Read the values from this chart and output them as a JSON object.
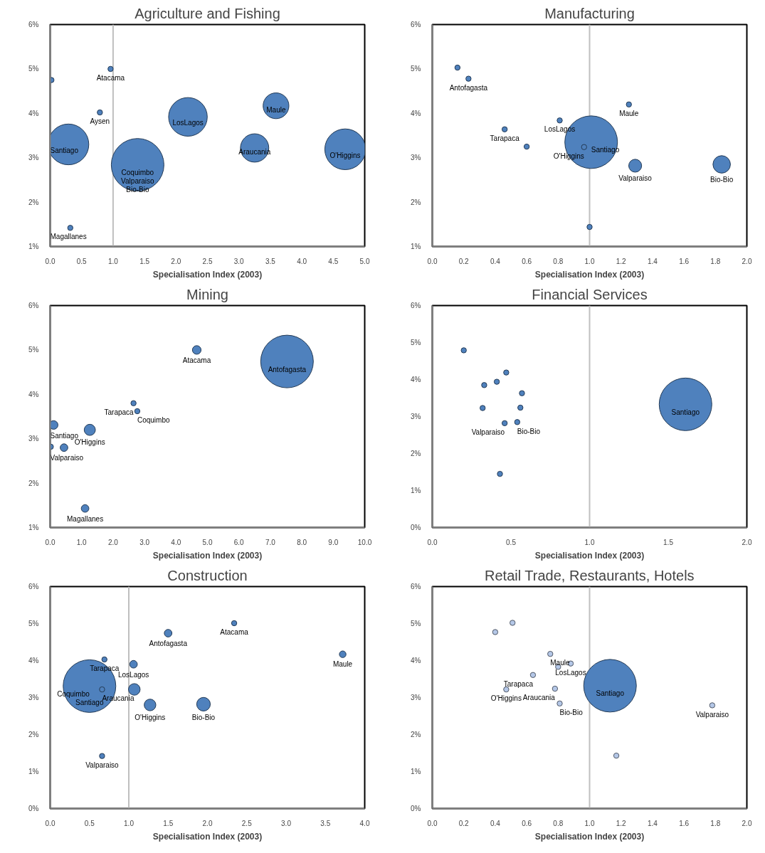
{
  "chart_data": [
    {
      "type": "bubble",
      "title": "Agriculture and Fishing",
      "xlabel": "Specialisation Index (2003)",
      "color": "#4f81bd",
      "x": [
        0.02,
        0.96,
        0.79,
        0.29,
        1.39,
        2.19,
        3.59,
        3.25,
        4.69,
        0.32
      ],
      "values": [
        4.75,
        5.0,
        4.02,
        3.3,
        2.84,
        3.92,
        4.17,
        3.22,
        3.19,
        1.42
      ],
      "sizes": [
        0.01,
        0.01,
        0.01,
        0.6,
        1,
        0.54,
        0.24,
        0.29,
        0.6,
        0.01
      ],
      "xlim": [
        0,
        5
      ],
      "xticks": [
        {
          "value": 0,
          "label": "0.0"
        },
        {
          "value": 0.5,
          "label": "0.5"
        },
        {
          "value": 1,
          "label": "1.0"
        },
        {
          "value": 1.5,
          "label": "1.5"
        },
        {
          "value": 2,
          "label": "2.0"
        },
        {
          "value": 2.5,
          "label": "2.5"
        },
        {
          "value": 3,
          "label": "3.0"
        },
        {
          "value": 3.5,
          "label": "3.5"
        },
        {
          "value": 4,
          "label": "4.0"
        },
        {
          "value": 4.5,
          "label": "4.5"
        },
        {
          "value": 5,
          "label": "5.0"
        }
      ],
      "ylim": [
        1,
        6
      ],
      "yticks": [
        {
          "value": 1,
          "label": "1%"
        },
        {
          "value": 2,
          "label": "2%"
        },
        {
          "value": 3,
          "label": "3%"
        },
        {
          "value": 4,
          "label": "4%"
        },
        {
          "value": 5,
          "label": "5%"
        },
        {
          "value": 6,
          "label": "6%"
        }
      ],
      "ref_lines": [
        {
          "axis": "x",
          "value": 1,
          "color": "#bfbfbf"
        }
      ],
      "annotations": [
        {
          "text": "Atacama",
          "x": 0.96,
          "y": 5.0
        },
        {
          "text": "Aysen",
          "x": 0.79,
          "y": 4.02
        },
        {
          "text": "Coquimbo",
          "x": 1.39,
          "y": 2.84
        },
        {
          "text": "Santiago",
          "x": 0.29,
          "y": 3.3
        },
        {
          "text": "LosLagos",
          "x": 2.19,
          "y": 3.92
        },
        {
          "text": "Maule",
          "x": 3.59,
          "y": 4.17
        },
        {
          "text": "Valparaiso",
          "x": 1.39,
          "y": 2.84
        },
        {
          "text": "Araucania",
          "x": 3.25,
          "y": 3.22
        },
        {
          "text": "O'Higgins",
          "x": 4.69,
          "y": 3.19
        },
        {
          "text": "Bio-Bio",
          "x": 1.39,
          "y": 2.84
        },
        {
          "text": "Magallanes",
          "x": 0.32,
          "y": 1.42
        }
      ]
    },
    {
      "type": "bubble",
      "title": "Manufacturing",
      "xlabel": "Specialisation Index (2003)",
      "color": "#4f81bd",
      "x": [
        0.16,
        0.23,
        0.46,
        0.6,
        0.81,
        1.01,
        0.965,
        1.25,
        1.29,
        1.84,
        1.0
      ],
      "values": [
        5.03,
        4.78,
        3.64,
        3.25,
        3.84,
        3.35,
        3.24,
        4.2,
        2.82,
        2.85,
        1.44
      ],
      "sizes": [
        0.01,
        0.01,
        0.01,
        0.01,
        0.01,
        1,
        0.01,
        0.01,
        0.06,
        0.11,
        0.01
      ],
      "xlim": [
        0,
        2
      ],
      "xticks": [
        {
          "value": 0,
          "label": "0.0"
        },
        {
          "value": 0.2,
          "label": "0.2"
        },
        {
          "value": 0.4,
          "label": "0.4"
        },
        {
          "value": 0.6,
          "label": "0.6"
        },
        {
          "value": 0.8,
          "label": "0.8"
        },
        {
          "value": 1,
          "label": "1.0"
        },
        {
          "value": 1.2,
          "label": "1.2"
        },
        {
          "value": 1.4,
          "label": "1.4"
        },
        {
          "value": 1.6,
          "label": "1.6"
        },
        {
          "value": 1.8,
          "label": "1.8"
        },
        {
          "value": 2,
          "label": "2.0"
        }
      ],
      "ylim": [
        1,
        6
      ],
      "yticks": [
        {
          "value": 1,
          "label": "1%"
        },
        {
          "value": 2,
          "label": "2%"
        },
        {
          "value": 3,
          "label": "3%"
        },
        {
          "value": 4,
          "label": "4%"
        },
        {
          "value": 5,
          "label": "5%"
        },
        {
          "value": 6,
          "label": "6%"
        }
      ],
      "ref_lines": [
        {
          "axis": "x",
          "value": 1,
          "color": "#bfbfbf"
        }
      ],
      "annotations": [
        {
          "text": "Antofagasta",
          "x": 0.23,
          "y": 4.78
        },
        {
          "text": "LosLagos",
          "x": 0.81,
          "y": 3.84
        },
        {
          "text": "Tarapaca",
          "x": 0.46,
          "y": 3.64
        },
        {
          "text": "Maule",
          "x": 1.25,
          "y": 4.2
        },
        {
          "text": "O'Higgins",
          "x": 0.965,
          "y": 3.24
        },
        {
          "text": "Santiago",
          "x": 1.01,
          "y": 3.35
        },
        {
          "text": "Valparaiso",
          "x": 1.29,
          "y": 2.82
        },
        {
          "text": "Bio-Bio",
          "x": 1.84,
          "y": 2.85
        }
      ]
    },
    {
      "type": "bubble",
      "title": "Mining",
      "xlabel": "Specialisation Index (2003)",
      "color": "#4f81bd",
      "x": [
        7.53,
        4.66,
        2.65,
        2.77,
        0.11,
        1.26,
        0.44,
        0.02,
        1.11
      ],
      "values": [
        4.74,
        5.0,
        3.8,
        3.62,
        3.31,
        3.2,
        2.8,
        2.82,
        1.43
      ],
      "sizes": [
        1,
        0.027,
        0.01,
        0.01,
        0.027,
        0.045,
        0.021,
        0.01,
        0.021
      ],
      "xlim": [
        0,
        10
      ],
      "xticks": [
        {
          "value": 0,
          "label": "0.0"
        },
        {
          "value": 1,
          "label": "1.0"
        },
        {
          "value": 2,
          "label": "2.0"
        },
        {
          "value": 3,
          "label": "3.0"
        },
        {
          "value": 4,
          "label": "4.0"
        },
        {
          "value": 5,
          "label": "5.0"
        },
        {
          "value": 6,
          "label": "6.0"
        },
        {
          "value": 7,
          "label": "7.0"
        },
        {
          "value": 8,
          "label": "8.0"
        },
        {
          "value": 9,
          "label": "9.0"
        },
        {
          "value": 10,
          "label": "10.0"
        }
      ],
      "ylim": [
        1,
        6
      ],
      "yticks": [
        {
          "value": 1,
          "label": "1%"
        },
        {
          "value": 2,
          "label": "2%"
        },
        {
          "value": 3,
          "label": "3%"
        },
        {
          "value": 4,
          "label": "4%"
        },
        {
          "value": 5,
          "label": "5%"
        },
        {
          "value": 6,
          "label": "6%"
        }
      ],
      "annotations": [
        {
          "text": "Atacama",
          "x": 4.66,
          "y": 5.0
        },
        {
          "text": "Antofagasta",
          "x": 7.53,
          "y": 4.74
        },
        {
          "text": "Tarapaca",
          "x": 2.65,
          "y": 3.8
        },
        {
          "text": "Coquimbo",
          "x": 2.77,
          "y": 3.62
        },
        {
          "text": "Santiago",
          "x": 0.11,
          "y": 3.31
        },
        {
          "text": "O'Higgins",
          "x": 1.26,
          "y": 3.2
        },
        {
          "text": "Valparaiso",
          "x": 0.44,
          "y": 2.8
        },
        {
          "text": "Magallanes",
          "x": 1.11,
          "y": 1.43
        }
      ]
    },
    {
      "type": "bubble",
      "title": "Financial Services",
      "xlabel": "Specialisation Index (2003)",
      "color": "#4f81bd",
      "x": [
        0.2,
        0.47,
        0.41,
        0.33,
        0.57,
        0.32,
        0.56,
        0.46,
        0.54,
        0.43,
        1.61
      ],
      "values": [
        4.79,
        4.19,
        3.94,
        3.85,
        3.63,
        3.23,
        3.24,
        2.82,
        2.85,
        1.45,
        3.33
      ],
      "sizes": [
        0.01,
        0.01,
        0.01,
        0.01,
        0.01,
        0.01,
        0.01,
        0.01,
        0.01,
        0.01,
        1
      ],
      "xlim": [
        0,
        2
      ],
      "xticks": [
        {
          "value": 0,
          "label": "0.0"
        },
        {
          "value": 0.5,
          "label": "0.5"
        },
        {
          "value": 1,
          "label": "1.0"
        },
        {
          "value": 1.5,
          "label": "1.5"
        },
        {
          "value": 2,
          "label": "2.0"
        }
      ],
      "ylim": [
        0,
        6
      ],
      "yticks": [
        {
          "value": 0,
          "label": "0%"
        },
        {
          "value": 1,
          "label": "1%"
        },
        {
          "value": 2,
          "label": "2%"
        },
        {
          "value": 3,
          "label": "3%"
        },
        {
          "value": 4,
          "label": "4%"
        },
        {
          "value": 5,
          "label": "5%"
        },
        {
          "value": 6,
          "label": "6%"
        }
      ],
      "ref_lines": [
        {
          "axis": "x",
          "value": 1,
          "color": "#bfbfbf"
        }
      ],
      "annotations": [
        {
          "text": "Valparaiso",
          "x": 0.46,
          "y": 2.82
        },
        {
          "text": "Bio-Bio",
          "x": 0.54,
          "y": 2.85
        },
        {
          "text": "Santiago",
          "x": 1.61,
          "y": 3.33
        }
      ]
    },
    {
      "type": "bubble",
      "title": "Construction",
      "xlabel": "Specialisation Index (2003)",
      "color": "#4f81bd",
      "x": [
        0.5,
        0.69,
        0.66,
        0.66,
        1.5,
        2.34,
        1.06,
        1.07,
        1.27,
        1.95,
        3.72
      ],
      "values": [
        3.31,
        4.03,
        3.22,
        1.42,
        4.74,
        5.01,
        3.9,
        3.22,
        2.8,
        2.82,
        4.17
      ],
      "sizes": [
        1,
        0.01,
        0.01,
        0.01,
        0.021,
        0.01,
        0.021,
        0.049,
        0.049,
        0.067,
        0.016
      ],
      "xlim": [
        0,
        4
      ],
      "xticks": [
        {
          "value": 0,
          "label": "0.0"
        },
        {
          "value": 0.5,
          "label": "0.5"
        },
        {
          "value": 1,
          "label": "1.0"
        },
        {
          "value": 1.5,
          "label": "1.5"
        },
        {
          "value": 2,
          "label": "2.0"
        },
        {
          "value": 2.5,
          "label": "2.5"
        },
        {
          "value": 3,
          "label": "3.0"
        },
        {
          "value": 3.5,
          "label": "3.5"
        },
        {
          "value": 4,
          "label": "4.0"
        }
      ],
      "ylim": [
        0,
        6
      ],
      "yticks": [
        {
          "value": 0,
          "label": "0%"
        },
        {
          "value": 1,
          "label": "1%"
        },
        {
          "value": 2,
          "label": "2%"
        },
        {
          "value": 3,
          "label": "3%"
        },
        {
          "value": 4,
          "label": "4%"
        },
        {
          "value": 5,
          "label": "5%"
        },
        {
          "value": 6,
          "label": "6%"
        }
      ],
      "ref_lines": [
        {
          "axis": "x",
          "value": 1,
          "color": "#bfbfbf"
        }
      ],
      "annotations": [
        {
          "text": "Antofagasta",
          "x": 1.5,
          "y": 4.74
        },
        {
          "text": "Atacama",
          "x": 2.34,
          "y": 5.01
        },
        {
          "text": "LosLagos",
          "x": 1.06,
          "y": 3.9
        },
        {
          "text": "Maule",
          "x": 3.72,
          "y": 4.17
        },
        {
          "text": "Tarapaca",
          "x": 0.69,
          "y": 4.03
        },
        {
          "text": "Coquimbo",
          "x": 0.5,
          "y": 3.31
        },
        {
          "text": "Araucania",
          "x": 0.66,
          "y": 3.22
        },
        {
          "text": "Santiago",
          "x": 0.5,
          "y": 3.31
        },
        {
          "text": "O'Higgins",
          "x": 1.27,
          "y": 2.8
        },
        {
          "text": "Bio-Bio",
          "x": 1.95,
          "y": 2.82
        },
        {
          "text": "Valparaiso",
          "x": 0.66,
          "y": 1.42
        }
      ]
    },
    {
      "type": "bubble",
      "title": "Retail Trade, Restaurants, Hotels",
      "xlabel": "Specialisation Index (2003)",
      "colors": [
        "#b4c7e7",
        "#b4c7e7",
        "#b4c7e7",
        "#b4c7e7",
        "#b4c7e7",
        "#b4c7e7",
        "#b4c7e7",
        "#b4c7e7",
        "#b4c7e7",
        "#4f81bd",
        "#b4c7e7",
        "#b4c7e7"
      ],
      "x": [
        0.51,
        0.4,
        0.75,
        0.88,
        0.8,
        0.64,
        0.47,
        0.78,
        0.81,
        1.13,
        1.78,
        1.17
      ],
      "values": [
        5.02,
        4.77,
        4.18,
        3.92,
        3.83,
        3.61,
        3.22,
        3.24,
        2.84,
        3.32,
        2.79,
        1.43
      ],
      "sizes": [
        0.01,
        0.01,
        0.01,
        0.01,
        0.01,
        0.01,
        0.01,
        0.01,
        0.01,
        1,
        0.01,
        0.01
      ],
      "xlim": [
        0,
        2
      ],
      "xticks": [
        {
          "value": 0,
          "label": "0.0"
        },
        {
          "value": 0.2,
          "label": "0.2"
        },
        {
          "value": 0.4,
          "label": "0.4"
        },
        {
          "value": 0.6,
          "label": "0.6"
        },
        {
          "value": 0.8,
          "label": "0.8"
        },
        {
          "value": 1,
          "label": "1.0"
        },
        {
          "value": 1.2,
          "label": "1.2"
        },
        {
          "value": 1.4,
          "label": "1.4"
        },
        {
          "value": 1.6,
          "label": "1.6"
        },
        {
          "value": 1.8,
          "label": "1.8"
        },
        {
          "value": 2,
          "label": "2.0"
        }
      ],
      "ylim": [
        0,
        6
      ],
      "yticks": [
        {
          "value": 0,
          "label": "0%"
        },
        {
          "value": 1,
          "label": "1%"
        },
        {
          "value": 2,
          "label": "2%"
        },
        {
          "value": 3,
          "label": "3%"
        },
        {
          "value": 4,
          "label": "4%"
        },
        {
          "value": 5,
          "label": "5%"
        },
        {
          "value": 6,
          "label": "6%"
        }
      ],
      "ref_lines": [
        {
          "axis": "x",
          "value": 1,
          "color": "#bfbfbf"
        }
      ],
      "annotations": [
        {
          "text": "Maule",
          "x": 0.75,
          "y": 4.18
        },
        {
          "text": "LosLagos",
          "x": 0.88,
          "y": 3.92
        },
        {
          "text": "Tarapaca",
          "x": 0.64,
          "y": 3.61
        },
        {
          "text": "Araucania",
          "x": 0.78,
          "y": 3.24
        },
        {
          "text": "O'Higgins",
          "x": 0.47,
          "y": 3.22
        },
        {
          "text": "Bio-Bio",
          "x": 0.81,
          "y": 2.84
        },
        {
          "text": "Santiago",
          "x": 1.13,
          "y": 3.32
        },
        {
          "text": "Valparaiso",
          "x": 1.78,
          "y": 2.79
        }
      ]
    }
  ]
}
